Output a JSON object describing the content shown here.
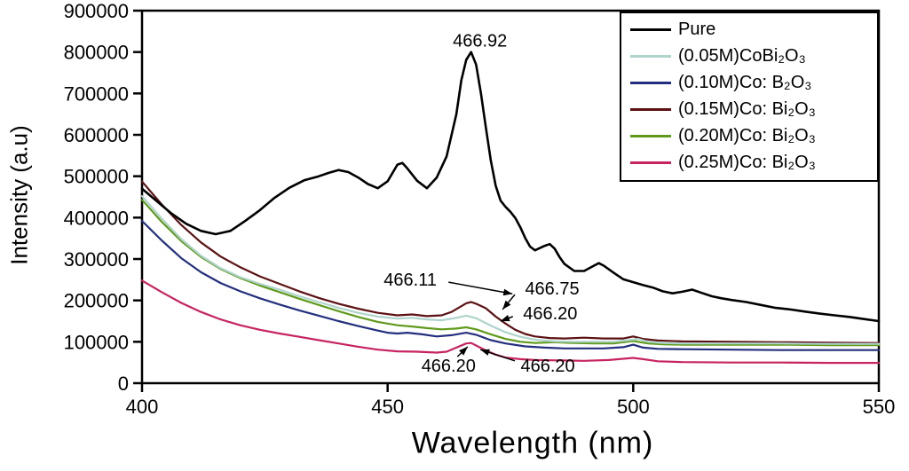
{
  "figure": {
    "background": "#ffffff",
    "frame_color": "#000000"
  },
  "chart_data": {
    "type": "line",
    "title": "",
    "xlabel": "Wavelength (nm)",
    "ylabel": "Intensity (a.u)",
    "xlim": [
      400,
      550
    ],
    "ylim": [
      0,
      900000
    ],
    "xticks": [
      400,
      450,
      500,
      550
    ],
    "yticks": [
      0,
      100000,
      200000,
      300000,
      400000,
      500000,
      600000,
      700000,
      800000,
      900000
    ],
    "grid": false,
    "legend_position": "top-right",
    "series": [
      {
        "id": "pure",
        "name": "Pure",
        "color": "#000000",
        "points": [
          [
            400,
            470000
          ],
          [
            403,
            440000
          ],
          [
            406,
            410000
          ],
          [
            409,
            385000
          ],
          [
            412,
            368000
          ],
          [
            415,
            360000
          ],
          [
            418,
            368000
          ],
          [
            421,
            392000
          ],
          [
            424,
            418000
          ],
          [
            427,
            448000
          ],
          [
            430,
            472000
          ],
          [
            433,
            490000
          ],
          [
            436,
            500000
          ],
          [
            438,
            508000
          ],
          [
            440,
            515000
          ],
          [
            442,
            510000
          ],
          [
            444,
            497000
          ],
          [
            446,
            481000
          ],
          [
            448,
            471000
          ],
          [
            450,
            488000
          ],
          [
            452,
            528000
          ],
          [
            453,
            532000
          ],
          [
            454,
            519000
          ],
          [
            456,
            489000
          ],
          [
            458,
            471000
          ],
          [
            460,
            497000
          ],
          [
            462,
            548000
          ],
          [
            464,
            650000
          ],
          [
            465,
            732000
          ],
          [
            466,
            781000
          ],
          [
            467,
            800000
          ],
          [
            468,
            770000
          ],
          [
            469,
            700000
          ],
          [
            470,
            618000
          ],
          [
            471,
            538000
          ],
          [
            472,
            477000
          ],
          [
            473,
            441000
          ],
          [
            474,
            426000
          ],
          [
            475,
            414000
          ],
          [
            476,
            399000
          ],
          [
            477,
            377000
          ],
          [
            478,
            351000
          ],
          [
            479,
            330000
          ],
          [
            480,
            321000
          ],
          [
            482,
            332000
          ],
          [
            483,
            336000
          ],
          [
            484,
            325000
          ],
          [
            485,
            305000
          ],
          [
            486,
            288000
          ],
          [
            488,
            271000
          ],
          [
            490,
            271000
          ],
          [
            492,
            284000
          ],
          [
            493,
            290000
          ],
          [
            494,
            284000
          ],
          [
            496,
            267000
          ],
          [
            498,
            251000
          ],
          [
            500,
            244000
          ],
          [
            502,
            237000
          ],
          [
            504,
            231000
          ],
          [
            506,
            222000
          ],
          [
            508,
            217000
          ],
          [
            510,
            221000
          ],
          [
            512,
            226000
          ],
          [
            514,
            218000
          ],
          [
            516,
            210000
          ],
          [
            518,
            205000
          ],
          [
            520,
            201000
          ],
          [
            523,
            196000
          ],
          [
            526,
            189000
          ],
          [
            529,
            182000
          ],
          [
            532,
            178000
          ],
          [
            535,
            173000
          ],
          [
            538,
            168000
          ],
          [
            541,
            164000
          ],
          [
            544,
            160000
          ],
          [
            547,
            155000
          ],
          [
            550,
            150000
          ]
        ]
      },
      {
        "id": "co-005",
        "name": "(0.05M)CoBi₂O₃",
        "color": "#aed4cb",
        "points": [
          [
            400,
            452000
          ],
          [
            404,
            398000
          ],
          [
            408,
            348000
          ],
          [
            412,
            308000
          ],
          [
            416,
            278000
          ],
          [
            420,
            256000
          ],
          [
            424,
            240000
          ],
          [
            428,
            226000
          ],
          [
            432,
            210000
          ],
          [
            436,
            196000
          ],
          [
            440,
            182000
          ],
          [
            444,
            170000
          ],
          [
            448,
            161000
          ],
          [
            452,
            156000
          ],
          [
            455,
            158000
          ],
          [
            458,
            154000
          ],
          [
            461,
            152000
          ],
          [
            464,
            158000
          ],
          [
            466,
            163000
          ],
          [
            468,
            157000
          ],
          [
            471,
            139000
          ],
          [
            474,
            123000
          ],
          [
            477,
            112000
          ],
          [
            480,
            105000
          ],
          [
            484,
            101000
          ],
          [
            488,
            100000
          ],
          [
            492,
            100000
          ],
          [
            496,
            100000
          ],
          [
            499,
            104000
          ],
          [
            501,
            107000
          ],
          [
            503,
            100000
          ],
          [
            506,
            97000
          ],
          [
            510,
            96000
          ],
          [
            520,
            96000
          ],
          [
            530,
            96000
          ],
          [
            540,
            95000
          ],
          [
            550,
            95000
          ]
        ]
      },
      {
        "id": "co-010",
        "name": "(0.10M)Co: B₂O₃",
        "color": "#232f7e",
        "points": [
          [
            400,
            392000
          ],
          [
            404,
            345000
          ],
          [
            408,
            302000
          ],
          [
            412,
            268000
          ],
          [
            416,
            242000
          ],
          [
            420,
            222000
          ],
          [
            424,
            205000
          ],
          [
            428,
            190000
          ],
          [
            432,
            176000
          ],
          [
            436,
            163000
          ],
          [
            440,
            150000
          ],
          [
            444,
            138000
          ],
          [
            448,
            127000
          ],
          [
            450,
            122000
          ],
          [
            452,
            120000
          ],
          [
            454,
            122000
          ],
          [
            457,
            118000
          ],
          [
            460,
            113000
          ],
          [
            463,
            116000
          ],
          [
            466,
            122000
          ],
          [
            468,
            117000
          ],
          [
            471,
            104000
          ],
          [
            474,
            96000
          ],
          [
            478,
            89000
          ],
          [
            482,
            86000
          ],
          [
            486,
            84000
          ],
          [
            490,
            84000
          ],
          [
            494,
            84000
          ],
          [
            498,
            87000
          ],
          [
            500,
            93000
          ],
          [
            502,
            86000
          ],
          [
            505,
            83000
          ],
          [
            510,
            82000
          ],
          [
            520,
            81000
          ],
          [
            530,
            80000
          ],
          [
            540,
            80000
          ],
          [
            550,
            80000
          ]
        ]
      },
      {
        "id": "co-015",
        "name": "(0.15M)Co: Bi₂O₃",
        "color": "#5c1113",
        "points": [
          [
            400,
            487000
          ],
          [
            404,
            432000
          ],
          [
            408,
            382000
          ],
          [
            412,
            340000
          ],
          [
            416,
            306000
          ],
          [
            420,
            280000
          ],
          [
            424,
            258000
          ],
          [
            428,
            240000
          ],
          [
            432,
            222000
          ],
          [
            436,
            206000
          ],
          [
            440,
            192000
          ],
          [
            444,
            180000
          ],
          [
            448,
            170000
          ],
          [
            452,
            164000
          ],
          [
            455,
            166000
          ],
          [
            458,
            162000
          ],
          [
            461,
            164000
          ],
          [
            463,
            172000
          ],
          [
            465,
            186000
          ],
          [
            466,
            193000
          ],
          [
            467,
            196000
          ],
          [
            468,
            192000
          ],
          [
            470,
            181000
          ],
          [
            472,
            161000
          ],
          [
            474,
            144000
          ],
          [
            476,
            129000
          ],
          [
            478,
            119000
          ],
          [
            480,
            113000
          ],
          [
            483,
            109000
          ],
          [
            486,
            108000
          ],
          [
            490,
            110000
          ],
          [
            494,
            108000
          ],
          [
            498,
            108000
          ],
          [
            500,
            113000
          ],
          [
            502,
            107000
          ],
          [
            505,
            103000
          ],
          [
            510,
            101000
          ],
          [
            520,
            100000
          ],
          [
            530,
            99000
          ],
          [
            540,
            98000
          ],
          [
            550,
            97000
          ]
        ]
      },
      {
        "id": "co-020",
        "name": "(0.20M)Co: Bi₂O₃",
        "color": "#5f9a1c",
        "points": [
          [
            400,
            443000
          ],
          [
            404,
            390000
          ],
          [
            408,
            343000
          ],
          [
            412,
            305000
          ],
          [
            416,
            276000
          ],
          [
            420,
            254000
          ],
          [
            424,
            236000
          ],
          [
            428,
            220000
          ],
          [
            432,
            204000
          ],
          [
            436,
            189000
          ],
          [
            440,
            174000
          ],
          [
            444,
            160000
          ],
          [
            448,
            148000
          ],
          [
            452,
            140000
          ],
          [
            455,
            137000
          ],
          [
            458,
            133000
          ],
          [
            461,
            130000
          ],
          [
            464,
            132000
          ],
          [
            466,
            135000
          ],
          [
            468,
            130000
          ],
          [
            471,
            118000
          ],
          [
            474,
            107000
          ],
          [
            477,
            100000
          ],
          [
            480,
            97000
          ],
          [
            484,
            99000
          ],
          [
            488,
            97000
          ],
          [
            492,
            96000
          ],
          [
            496,
            96000
          ],
          [
            500,
            102000
          ],
          [
            503,
            96000
          ],
          [
            506,
            94000
          ],
          [
            510,
            93000
          ],
          [
            520,
            93000
          ],
          [
            530,
            93000
          ],
          [
            540,
            92000
          ],
          [
            550,
            92000
          ]
        ]
      },
      {
        "id": "co-025",
        "name": "(0.25M)Co: Bi₂O₃",
        "color": "#c72360",
        "points": [
          [
            400,
            248000
          ],
          [
            404,
            220000
          ],
          [
            408,
            194000
          ],
          [
            412,
            172000
          ],
          [
            416,
            154000
          ],
          [
            420,
            140000
          ],
          [
            424,
            129000
          ],
          [
            428,
            120000
          ],
          [
            432,
            112000
          ],
          [
            436,
            104000
          ],
          [
            440,
            96000
          ],
          [
            444,
            88000
          ],
          [
            448,
            81000
          ],
          [
            452,
            77000
          ],
          [
            456,
            76000
          ],
          [
            460,
            74000
          ],
          [
            462,
            76000
          ],
          [
            464,
            86000
          ],
          [
            466,
            96000
          ],
          [
            467,
            97000
          ],
          [
            468,
            91000
          ],
          [
            470,
            79000
          ],
          [
            472,
            69000
          ],
          [
            474,
            62000
          ],
          [
            477,
            58000
          ],
          [
            480,
            56000
          ],
          [
            485,
            55000
          ],
          [
            490,
            54000
          ],
          [
            495,
            56000
          ],
          [
            500,
            61000
          ],
          [
            502,
            58000
          ],
          [
            505,
            53000
          ],
          [
            510,
            51000
          ],
          [
            520,
            50000
          ],
          [
            530,
            50000
          ],
          [
            540,
            49000
          ],
          [
            550,
            49000
          ]
        ]
      }
    ],
    "annotations": [
      {
        "text": "466.92",
        "tx": 468.8,
        "ty": 828000
      },
      {
        "text": "466.11",
        "tx": 454.6,
        "ty": 251000,
        "arrow": {
          "sx": 462.4,
          "sy": 244000,
          "ax": 475.4,
          "ay": 216000
        }
      },
      {
        "text": "466.75",
        "tx": 483.5,
        "ty": 229000,
        "arrow": {
          "sx": 475.9,
          "sy": 214000,
          "ax": 473.4,
          "ay": 178000
        }
      },
      {
        "text": "466.20",
        "tx": 483.1,
        "ty": 169000,
        "arrow": {
          "sx": 475.5,
          "sy": 161000,
          "ax": 473.0,
          "ay": 150000
        }
      },
      {
        "text": "466.20",
        "tx": 462.4,
        "ty": 43000,
        "arrow": {
          "sx": 464.2,
          "sy": 64000,
          "ax": 466.3,
          "ay": 88000
        }
      },
      {
        "text": "466.20",
        "tx": 482.6,
        "ty": 43000,
        "arrow": {
          "sx": 475.9,
          "sy": 54000,
          "ax": 468.9,
          "ay": 81000
        }
      }
    ]
  }
}
